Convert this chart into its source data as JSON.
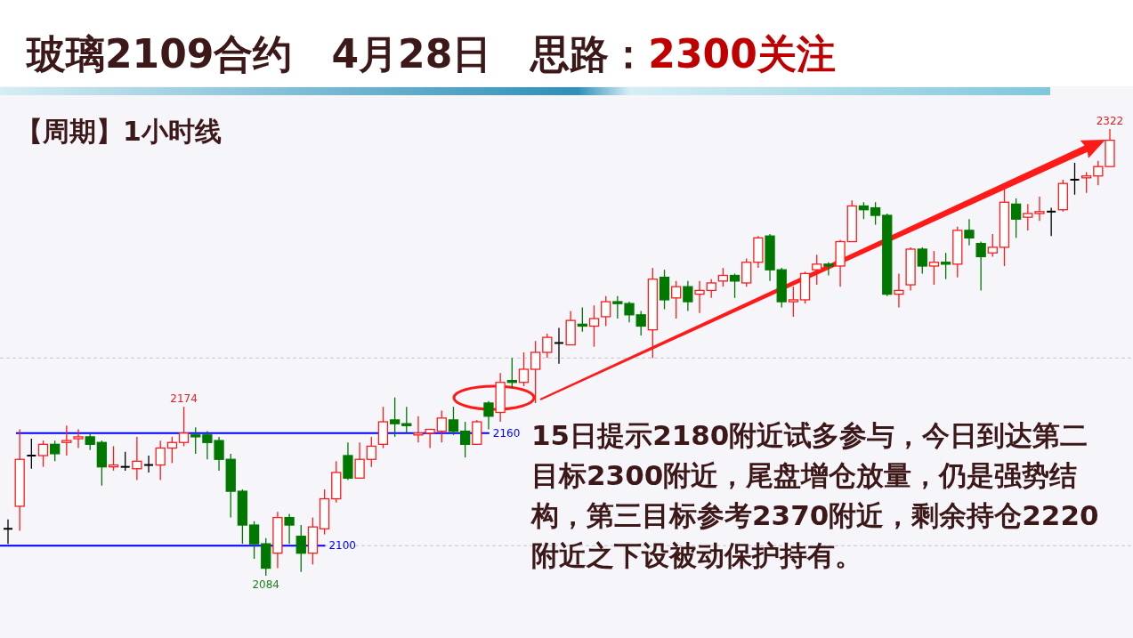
{
  "chart_data": {
    "type": "candlestick",
    "title": "玻璃2109合约　4月28日　思路：",
    "subtitle": "2300关注",
    "categories": [
      null,
      null,
      null,
      null,
      null,
      null,
      null,
      null,
      null,
      null,
      null,
      null,
      null,
      null,
      null,
      null,
      null,
      null,
      null,
      null,
      null,
      null,
      null,
      null,
      null,
      null,
      null,
      null,
      null,
      null,
      null,
      null,
      null,
      null,
      null,
      null,
      null,
      null,
      null,
      null,
      null,
      null,
      null,
      null,
      null,
      null,
      null,
      null,
      null,
      null,
      null,
      null,
      null,
      null,
      null,
      null,
      null,
      null,
      null,
      null,
      null,
      null,
      null,
      null,
      null,
      null,
      null,
      null,
      null,
      null,
      null,
      null,
      null,
      null,
      null,
      null,
      null,
      null,
      null,
      null,
      null,
      null,
      null,
      null,
      null,
      null,
      null,
      null,
      null,
      null,
      null,
      null,
      null,
      null,
      null
    ],
    "ohlc": [
      [
        2109,
        2114,
        2101,
        2109
      ],
      [
        2121,
        2162,
        2108,
        2146
      ],
      [
        2148,
        2157,
        2141,
        2148
      ],
      [
        2148,
        2156,
        2142,
        2154
      ],
      [
        2154,
        2156,
        2145,
        2149
      ],
      [
        2155,
        2164,
        2148,
        2156
      ],
      [
        2157,
        2162,
        2152,
        2158
      ],
      [
        2158,
        2160,
        2151,
        2154
      ],
      [
        2155,
        2156,
        2132,
        2142
      ],
      [
        2142,
        2153,
        2140,
        2143
      ],
      [
        2142,
        2150,
        2140,
        2142
      ],
      [
        2141,
        2158,
        2135,
        2145
      ],
      [
        2143,
        2148,
        2139,
        2143
      ],
      [
        2143,
        2156,
        2135,
        2152
      ],
      [
        2152,
        2158,
        2144,
        2155
      ],
      [
        2155,
        2174,
        2153,
        2160
      ],
      [
        2159,
        2163,
        2149,
        2158
      ],
      [
        2159,
        2161,
        2146,
        2155
      ],
      [
        2156,
        2158,
        2140,
        2146
      ],
      [
        2146,
        2149,
        2115,
        2129
      ],
      [
        2129,
        2130,
        2101,
        2111
      ],
      [
        2111,
        2113,
        2093,
        2101
      ],
      [
        2101,
        2104,
        2084,
        2088
      ],
      [
        2096,
        2118,
        2088,
        2115
      ],
      [
        2115,
        2117,
        2101,
        2111
      ],
      [
        2105,
        2111,
        2086,
        2096
      ],
      [
        2096,
        2115,
        2090,
        2110
      ],
      [
        2109,
        2130,
        2106,
        2125
      ],
      [
        2125,
        2145,
        2123,
        2139
      ],
      [
        2148,
        2155,
        2135,
        2136
      ],
      [
        2136,
        2155,
        2136,
        2146
      ],
      [
        2146,
        2158,
        2142,
        2153
      ],
      [
        2154,
        2174,
        2152,
        2166
      ],
      [
        2167,
        2179,
        2158,
        2165
      ],
      [
        2165,
        2174,
        2160,
        2164
      ],
      [
        2159,
        2169,
        2155,
        2160
      ],
      [
        2160,
        2162,
        2152,
        2162
      ],
      [
        2161,
        2172,
        2155,
        2168
      ],
      [
        2167,
        2174,
        2159,
        2161
      ],
      [
        2161,
        2166,
        2147,
        2154
      ],
      [
        2154,
        2167,
        2154,
        2166
      ],
      [
        2176,
        2177,
        2162,
        2169
      ],
      [
        2171,
        2192,
        2166,
        2187
      ],
      [
        2188,
        2200,
        2184,
        2187
      ],
      [
        2187,
        2203,
        2185,
        2194
      ],
      [
        2194,
        2209,
        2176,
        2203
      ],
      [
        2203,
        2213,
        2200,
        2211
      ],
      [
        2208,
        2216,
        2197,
        2208
      ],
      [
        2207,
        2225,
        2207,
        2220
      ],
      [
        2218,
        2227,
        2214,
        2217
      ],
      [
        2217,
        2228,
        2206,
        2221
      ],
      [
        2222,
        2233,
        2217,
        2230
      ],
      [
        2230,
        2233,
        2221,
        2229
      ],
      [
        2229,
        2230,
        2219,
        2223
      ],
      [
        2223,
        2225,
        2212,
        2217
      ],
      [
        2215,
        2248,
        2200,
        2242
      ],
      [
        2243,
        2247,
        2226,
        2231
      ],
      [
        2232,
        2241,
        2221,
        2238
      ],
      [
        2238,
        2241,
        2225,
        2230
      ],
      [
        2234,
        2241,
        2224,
        2236
      ],
      [
        2236,
        2242,
        2232,
        2240
      ],
      [
        2241,
        2248,
        2238,
        2244
      ],
      [
        2244,
        2245,
        2232,
        2241
      ],
      [
        2240,
        2253,
        2238,
        2251
      ],
      [
        2251,
        2265,
        2248,
        2264
      ],
      [
        2265,
        2266,
        2241,
        2247
      ],
      [
        2247,
        2248,
        2227,
        2230
      ],
      [
        2230,
        2238,
        2222,
        2231
      ],
      [
        2231,
        2246,
        2229,
        2245
      ],
      [
        2247,
        2255,
        2239,
        2250
      ],
      [
        2250,
        2251,
        2244,
        2249
      ],
      [
        2249,
        2263,
        2238,
        2262
      ],
      [
        2262,
        2284,
        2262,
        2281
      ],
      [
        2281,
        2283,
        2274,
        2279
      ],
      [
        2280,
        2283,
        2271,
        2276
      ],
      [
        2276,
        2277,
        2233,
        2234
      ],
      [
        2234,
        2245,
        2227,
        2236
      ],
      [
        2239,
        2259,
        2236,
        2258
      ],
      [
        2258,
        2259,
        2245,
        2249
      ],
      [
        2249,
        2257,
        2239,
        2251
      ],
      [
        2251,
        2256,
        2242,
        2250
      ],
      [
        2250,
        2270,
        2243,
        2268
      ],
      [
        2268,
        2274,
        2260,
        2264
      ],
      [
        2261,
        2262,
        2236,
        2254
      ],
      [
        2256,
        2266,
        2254,
        2259
      ],
      [
        2259,
        2290,
        2249,
        2283
      ],
      [
        2282,
        2285,
        2264,
        2274
      ],
      [
        2275,
        2282,
        2268,
        2277
      ],
      [
        2277,
        2286,
        2273,
        2278
      ],
      [
        2278,
        2280,
        2265,
        2278
      ],
      [
        2279,
        2295,
        2278,
        2293
      ],
      [
        2295,
        2304,
        2287,
        2295
      ],
      [
        2296,
        2299,
        2288,
        2297
      ],
      [
        2297,
        2305,
        2292,
        2302
      ],
      [
        2302,
        2322,
        2302,
        2316
      ]
    ],
    "yticks": [
      {
        "value": 2100,
        "label": null
      },
      {
        "value": 2200,
        "label": null
      }
    ],
    "grid": "y",
    "ref_lines": [
      {
        "axis": "y",
        "value": 2160,
        "label": "2160",
        "color": "#0000ff"
      },
      {
        "axis": "y",
        "value": 2100,
        "label": "2100",
        "color": "#0000ff"
      }
    ],
    "annotations": [
      "【周期】1小时线",
      "15日提示2180附近试多参与，今日到达第二目标2300附近，尾盘增仓放量，仍是强势结构，第三目标参考2370附近，剩余持仓2220附近之下设被动保护持有。",
      {
        "text": "2174",
        "y": 2174
      },
      {
        "text": "2084",
        "y": 2084
      },
      {
        "text": "2322",
        "y": 2322
      }
    ]
  }
}
